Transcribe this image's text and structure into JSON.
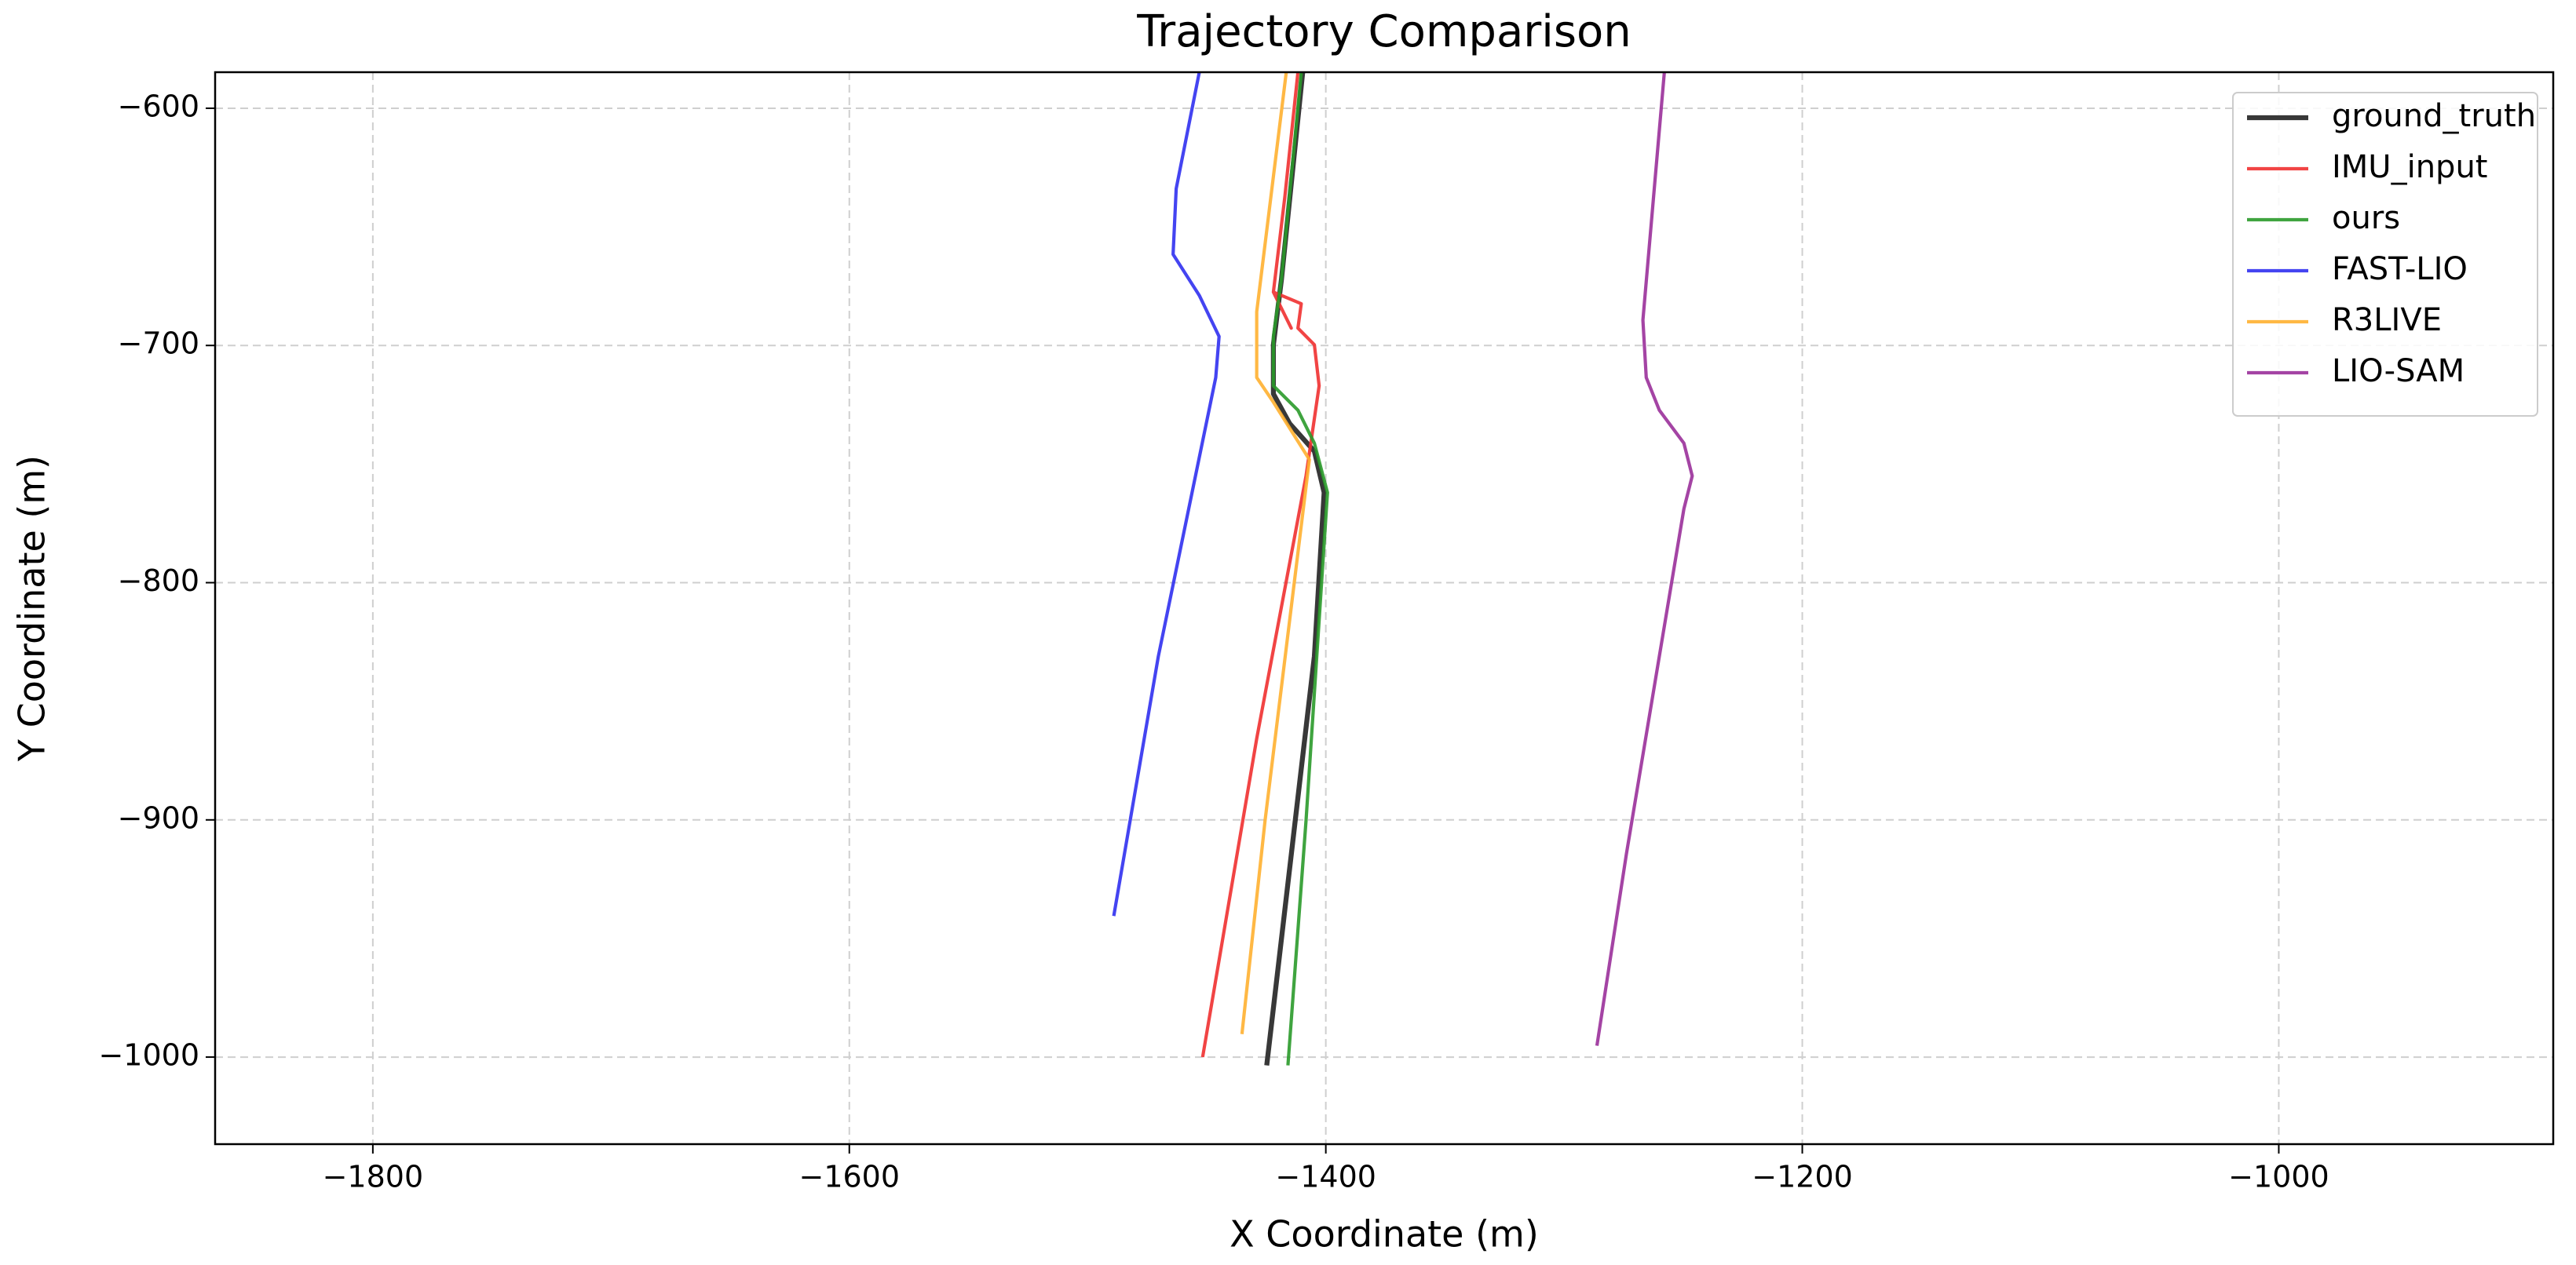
{
  "chart_data": {
    "type": "line",
    "title": "Trajectory Comparison",
    "xlabel": "X Coordinate (m)",
    "ylabel": "Y Coordinate (m)",
    "xlim": [
      -1866.2,
      -884.8
    ],
    "ylim": [
      -1036.7,
      -584.8
    ],
    "xticks": [
      {
        "value": -1800,
        "label": "−1800"
      },
      {
        "value": -1600,
        "label": "−1600"
      },
      {
        "value": -1400,
        "label": "−1400"
      },
      {
        "value": -1200,
        "label": "−1200"
      },
      {
        "value": -1000,
        "label": "−1000"
      }
    ],
    "yticks": [
      {
        "value": -1000,
        "label": "−1000"
      },
      {
        "value": -900,
        "label": "−900"
      },
      {
        "value": -800,
        "label": "−800"
      },
      {
        "value": -700,
        "label": "−700"
      },
      {
        "value": -600,
        "label": "−600"
      }
    ],
    "grid": true,
    "legend": "upper right",
    "series": [
      {
        "name": "ground_truth",
        "color": "#222222",
        "width": 3,
        "x": [
          -1424.8,
          -1404.8,
          -1400.7,
          -1404.8,
          -1415.2,
          -1422,
          -1422,
          -1418.6,
          -1409.7
        ],
        "values": [
          -1003.5,
          -831,
          -762,
          -744.6,
          -732.9,
          -720.4,
          -699.7,
          -672,
          -584.8
        ]
      },
      {
        "name": "IMU_input",
        "color": "#f03030",
        "width": 2,
        "x": [
          -1451.7,
          -1429,
          -1408.3,
          -1402.8,
          -1404.8,
          -1411.7,
          -1410.3,
          -1422,
          -1414.5,
          -1422,
          -1417.2,
          -1411.7
        ],
        "values": [
          -1000,
          -865.7,
          -755,
          -717,
          -699.7,
          -692.7,
          -682.4,
          -677.5,
          -692.7,
          -677.5,
          -637.4,
          -584.8
        ]
      },
      {
        "name": "ours",
        "color": "#2a9a2a",
        "width": 2,
        "x": [
          -1415.9,
          -1408.3,
          -1399.3,
          -1404.8,
          -1411.7,
          -1422,
          -1422,
          -1418.6,
          -1410.3
        ],
        "values": [
          -1003.5,
          -900.3,
          -762,
          -741.2,
          -727.3,
          -717,
          -696.2,
          -672,
          -584.8
        ]
      },
      {
        "name": "FAST-LIO",
        "color": "#3030f0",
        "width": 2,
        "x": [
          -1489,
          -1470.3,
          -1446.2,
          -1444.8,
          -1453.1,
          -1464.1,
          -1462.8,
          -1453.1
        ],
        "values": [
          -940.5,
          -831.1,
          -713.5,
          -696.2,
          -678.9,
          -661.6,
          -633.9,
          -584.8
        ]
      },
      {
        "name": "R3LIVE",
        "color": "#ffb030",
        "width": 2,
        "x": [
          -1435.2,
          -1425.5,
          -1406.9,
          -1422,
          -1429,
          -1429,
          -1416.6
        ],
        "values": [
          -990.3,
          -900.3,
          -748.1,
          -723.9,
          -713.5,
          -685.8,
          -584.8
        ]
      },
      {
        "name": "LIO-SAM",
        "color": "#9a309a",
        "width": 2,
        "x": [
          -1286.2,
          -1273.8,
          -1249.7,
          -1246.2,
          -1249.7,
          -1260,
          -1265.5,
          -1266.9,
          -1257.9
        ],
        "values": [
          -995.2,
          -914.2,
          -768.9,
          -755,
          -741.2,
          -727.3,
          -713.5,
          -689.3,
          -584.8
        ]
      }
    ]
  }
}
